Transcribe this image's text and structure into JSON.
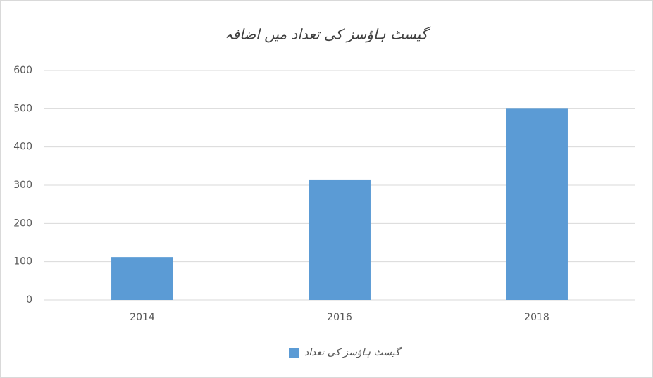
{
  "chart_data": {
    "type": "bar",
    "title": "گیسٹ ہاؤسز کی تعداد میں اضافہ",
    "categories": [
      "2014",
      "2016",
      "2018"
    ],
    "series": [
      {
        "name": "گیسٹ ہاؤسز کی تعداد",
        "color": "#5b9bd5",
        "values": [
          112,
          313,
          500
        ]
      }
    ],
    "ylim": [
      0,
      600
    ],
    "yticks": [
      0,
      100,
      200,
      300,
      400,
      500,
      600
    ],
    "grid": true,
    "legend": "bottom"
  }
}
